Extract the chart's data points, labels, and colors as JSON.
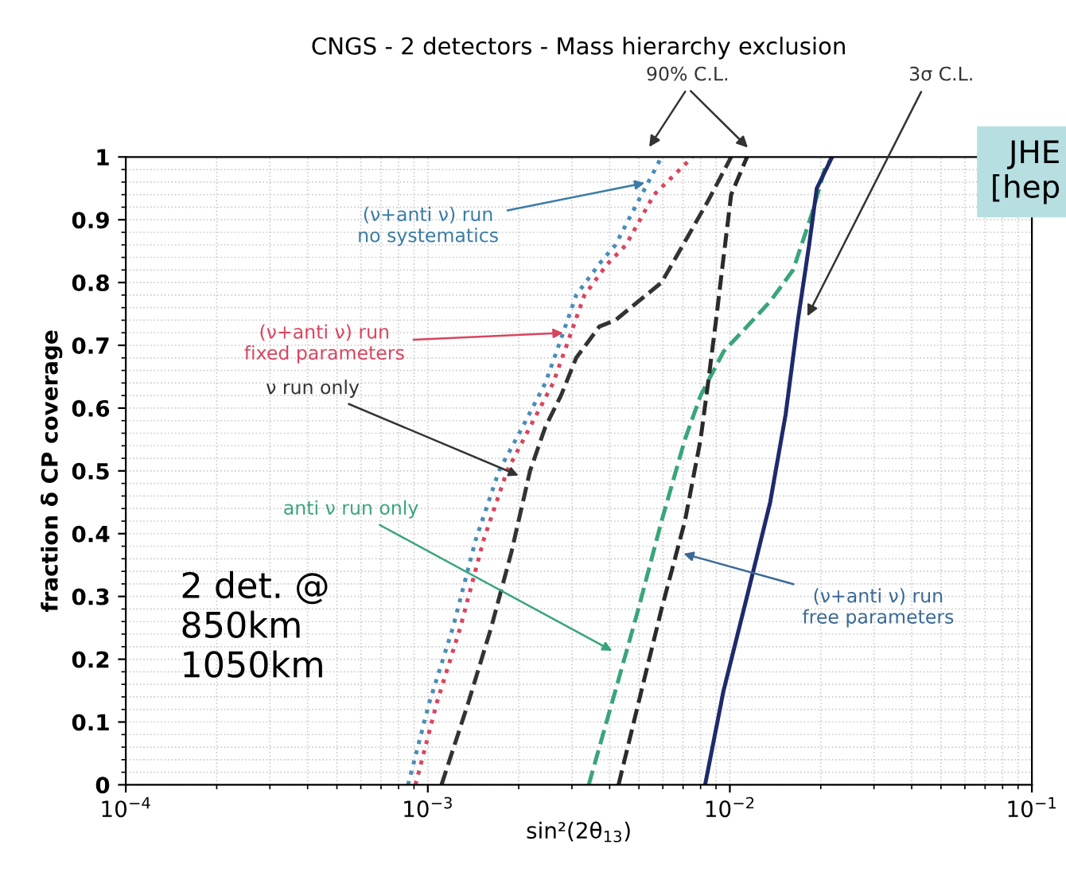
{
  "chart_data": {
    "type": "line",
    "title": "CNGS - 2 detectors - Mass hierarchy exclusion",
    "xlabel": "sin²(2θ$_{13}$)",
    "ylabel": "fraction δ CP coverage",
    "log": "x",
    "xlim": [
      0.0001,
      0.1
    ],
    "ylim": [
      0,
      1
    ],
    "xticks": [
      {
        "value": 0.0001,
        "label": "10$^{−4}$"
      },
      {
        "value": 0.001,
        "label": "10$^{−3}$"
      },
      {
        "value": 0.01,
        "label": "10$^{−2}$"
      },
      {
        "value": 0.1,
        "label": "10$^{−1}$"
      }
    ],
    "yticks": [
      0,
      0.1,
      0.2,
      0.3,
      0.4,
      0.5,
      0.6,
      0.7,
      0.8,
      0.9,
      1
    ],
    "grid": true,
    "marker": "none",
    "series": [
      {
        "color": "#4a8db7",
        "line_style": "dotted",
        "x": [
          0.00086,
          0.00101,
          0.00121,
          0.00144,
          0.00172,
          0.00206,
          0.00245,
          0.00276,
          0.0031,
          0.0037,
          0.00418,
          0.00498,
          0.00594
        ],
        "values": [
          0,
          0.13,
          0.25,
          0.39,
          0.5,
          0.57,
          0.64,
          0.71,
          0.78,
          0.83,
          0.86,
          0.93,
          1
        ]
      },
      {
        "color": "#d9455f",
        "line_style": "dotted",
        "x": [
          0.00091,
          0.00107,
          0.00128,
          0.00153,
          0.00183,
          0.00218,
          0.0026,
          0.00293,
          0.0033,
          0.00394,
          0.00453,
          0.00561,
          0.00753
        ],
        "values": [
          0,
          0.13,
          0.25,
          0.39,
          0.5,
          0.57,
          0.64,
          0.71,
          0.78,
          0.83,
          0.86,
          0.94,
          1
        ]
      },
      {
        "color": "#333333",
        "line_style": "dashed",
        "x": [
          0.00111,
          0.00136,
          0.00162,
          0.00189,
          0.00218,
          0.00245,
          0.00276,
          0.0031,
          0.0037,
          0.00418,
          0.00498,
          0.00594,
          0.00847,
          0.0101
        ],
        "values": [
          0,
          0.13,
          0.25,
          0.37,
          0.5,
          0.57,
          0.62,
          0.68,
          0.73,
          0.74,
          0.77,
          0.8,
          0.93,
          1
        ]
      },
      {
        "color": "#3aa57a",
        "line_style": "dashed",
        "x": [
          0.00341,
          0.00418,
          0.00498,
          0.00594,
          0.0071,
          0.008,
          0.00953,
          0.0114,
          0.0136,
          0.0162,
          0.0187,
          0.0206,
          0.0218
        ],
        "values": [
          0,
          0.15,
          0.28,
          0.42,
          0.55,
          0.62,
          0.69,
          0.73,
          0.77,
          0.82,
          0.91,
          0.98,
          1
        ]
      },
      {
        "color": "#2b2b2b",
        "line_style": "dashed",
        "x": [
          0.00428,
          0.00498,
          0.00594,
          0.0071,
          0.008,
          0.00847,
          0.009,
          0.00953,
          0.0101,
          0.0114
        ],
        "values": [
          0,
          0.13,
          0.28,
          0.42,
          0.55,
          0.64,
          0.74,
          0.84,
          0.94,
          1
        ]
      },
      {
        "color": "#1f2a6b",
        "line_style": "solid",
        "x": [
          0.00828,
          0.00953,
          0.0114,
          0.0136,
          0.0153,
          0.0168,
          0.0183,
          0.0194,
          0.0218
        ],
        "values": [
          0,
          0.15,
          0.3,
          0.45,
          0.59,
          0.74,
          0.86,
          0.95,
          1
        ]
      }
    ],
    "annotations": [
      {
        "text": "(ν+anti ν) run\nno systematics",
        "x": 0.0054,
        "y": 0.96
      },
      {
        "text": "(ν+anti ν) run\nfixed parameters",
        "x": 0.0029,
        "y": 0.72
      },
      {
        "text": "ν run only",
        "x": 0.00206,
        "y": 0.49
      },
      {
        "text": "anti ν run only",
        "x": 0.0042,
        "y": 0.21
      },
      {
        "text": "(ν+anti ν) run\nfree parameters",
        "x": 0.0068,
        "y": 0.37
      },
      "90% C.L.",
      "3σ C.L.",
      "2 det. @\n850km\n1050km",
      "JHE\n[hep"
    ]
  }
}
